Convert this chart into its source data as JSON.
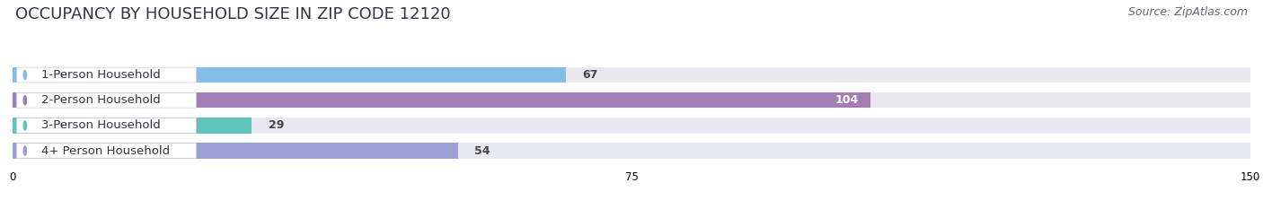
{
  "title": "OCCUPANCY BY HOUSEHOLD SIZE IN ZIP CODE 12120",
  "source": "Source: ZipAtlas.com",
  "categories": [
    "1-Person Household",
    "2-Person Household",
    "3-Person Household",
    "4+ Person Household"
  ],
  "values": [
    67,
    104,
    29,
    54
  ],
  "bar_colors": [
    "#85bce8",
    "#a57db5",
    "#5ec4bc",
    "#9b9fd4"
  ],
  "xlim": [
    0,
    150
  ],
  "xticks": [
    0,
    75,
    150
  ],
  "background_color": "#ffffff",
  "bar_bg_color": "#e8e8f0",
  "title_fontsize": 13,
  "source_fontsize": 9,
  "label_fontsize": 9.5,
  "value_fontsize": 9,
  "bar_height": 0.62,
  "figsize": [
    14.06,
    2.33
  ],
  "dpi": 100
}
